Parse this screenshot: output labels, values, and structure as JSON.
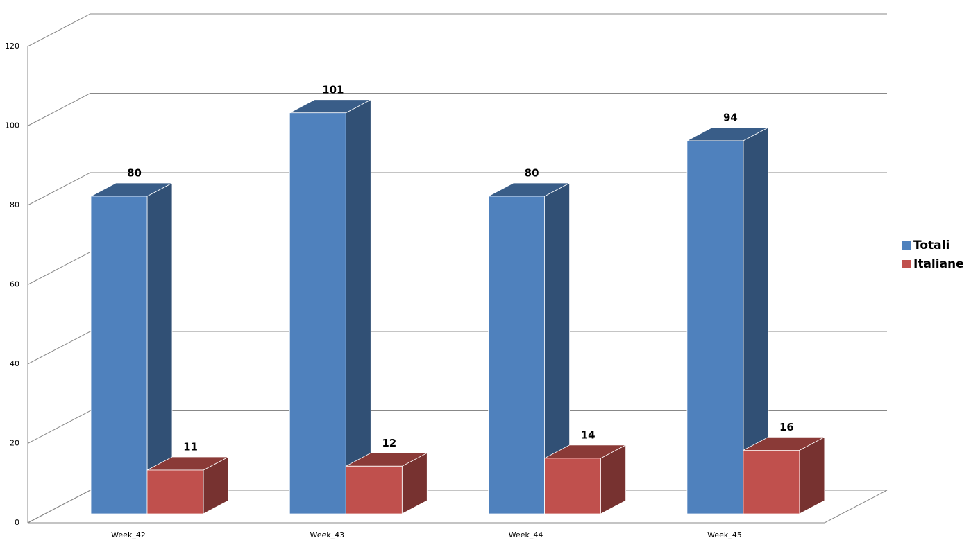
{
  "chart_data": {
    "type": "bar3d",
    "categories": [
      "Week_42",
      "Week_43",
      "Week_44",
      "Week_45"
    ],
    "series": [
      {
        "name": "Totali",
        "color": "#4f81bd",
        "values": [
          80,
          101,
          80,
          94
        ]
      },
      {
        "name": "Italiane",
        "color": "#c0504d",
        "values": [
          11,
          12,
          14,
          16
        ]
      }
    ],
    "ylim": [
      0,
      120
    ],
    "yticks": [
      0,
      20,
      40,
      60,
      80,
      100,
      120
    ],
    "grid": true,
    "legend": "right"
  }
}
